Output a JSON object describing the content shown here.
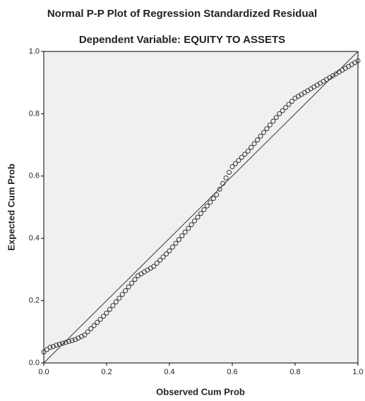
{
  "chart_data": {
    "type": "scatter",
    "title": "Normal P-P Plot of Regression Standardized Residual",
    "subtitle": "Dependent Variable: EQUITY TO ASSETS",
    "x_label": "Observed Cum Prob",
    "y_label": "Expected Cum Prob",
    "xlim": [
      0,
      1
    ],
    "ylim": [
      0,
      1
    ],
    "xticks": [
      {
        "value": 0,
        "label": "0.0"
      },
      0.2,
      0.4,
      0.6,
      0.8,
      {
        "value": 1,
        "label": "1.0"
      }
    ],
    "yticks": [
      {
        "value": 0,
        "label": "0.0"
      },
      0.2,
      0.4,
      0.6,
      0.8,
      {
        "value": 1,
        "label": "1.0"
      }
    ],
    "color": "#333333",
    "x": [
      0,
      0.01,
      0.02,
      0.03,
      0.04,
      0.05,
      0.06,
      0.07,
      0.08,
      0.09,
      0.1,
      0.11,
      0.12,
      0.13,
      0.14,
      0.15,
      0.16,
      0.17,
      0.18,
      0.19,
      0.2,
      0.21,
      0.22,
      0.23,
      0.24,
      0.25,
      0.26,
      0.27,
      0.28,
      0.29,
      0.3,
      0.31,
      0.32,
      0.33,
      0.34,
      0.35,
      0.36,
      0.37,
      0.38,
      0.39,
      0.4,
      0.41,
      0.42,
      0.43,
      0.44,
      0.45,
      0.46,
      0.47,
      0.48,
      0.49,
      0.5,
      0.51,
      0.52,
      0.53,
      0.54,
      0.55,
      0.56,
      0.57,
      0.58,
      0.59,
      0.6,
      0.61,
      0.62,
      0.63,
      0.64,
      0.65,
      0.66,
      0.67,
      0.68,
      0.69,
      0.7,
      0.71,
      0.72,
      0.73,
      0.74,
      0.75,
      0.76,
      0.77,
      0.78,
      0.79,
      0.8,
      0.81,
      0.82,
      0.83,
      0.84,
      0.85,
      0.86,
      0.87,
      0.88,
      0.89,
      0.9,
      0.91,
      0.92,
      0.93,
      0.94,
      0.95,
      0.96,
      0.97,
      0.98,
      0.99,
      1
    ],
    "values": [
      0.035,
      0.043,
      0.05,
      0.053,
      0.057,
      0.06,
      0.063,
      0.066,
      0.069,
      0.072,
      0.075,
      0.08,
      0.085,
      0.09,
      0.1,
      0.11,
      0.12,
      0.13,
      0.14,
      0.15,
      0.16,
      0.172,
      0.184,
      0.196,
      0.208,
      0.22,
      0.232,
      0.244,
      0.256,
      0.268,
      0.28,
      0.286,
      0.292,
      0.298,
      0.304,
      0.31,
      0.32,
      0.33,
      0.34,
      0.35,
      0.36,
      0.372,
      0.384,
      0.396,
      0.408,
      0.42,
      0.432,
      0.444,
      0.456,
      0.468,
      0.48,
      0.492,
      0.504,
      0.516,
      0.528,
      0.54,
      0.558,
      0.576,
      0.594,
      0.612,
      0.63,
      0.64,
      0.65,
      0.66,
      0.67,
      0.68,
      0.692,
      0.704,
      0.716,
      0.728,
      0.74,
      0.752,
      0.764,
      0.776,
      0.788,
      0.8,
      0.81,
      0.82,
      0.83,
      0.84,
      0.85,
      0.856,
      0.862,
      0.868,
      0.874,
      0.88,
      0.886,
      0.892,
      0.898,
      0.904,
      0.91,
      0.916,
      0.922,
      0.928,
      0.934,
      0.94,
      0.946,
      0.952,
      0.958,
      0.964,
      0.97
    ]
  }
}
